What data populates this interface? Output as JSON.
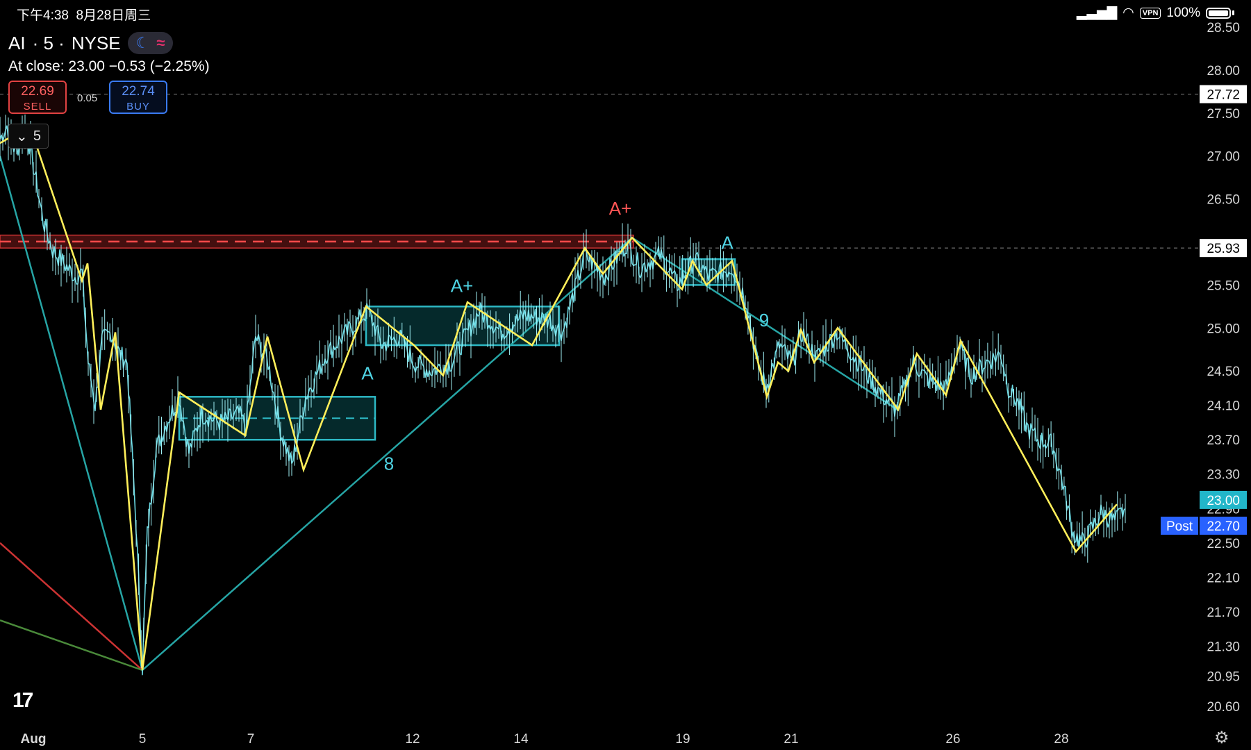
{
  "status_bar": {
    "time": "下午4:38",
    "date": "8月28日周三",
    "vpn": "VPN",
    "battery": "100%"
  },
  "symbol": {
    "ticker": "AI",
    "interval": "· 5 ·",
    "exchange": "NYSE"
  },
  "close_info": {
    "label": "At close:",
    "value": "23.00",
    "change": "−0.53 (−2.25%)"
  },
  "trade": {
    "sell_price": "22.69",
    "sell_label": "SELL",
    "spread": "0.05",
    "buy_price": "22.74",
    "buy_label": "BUY"
  },
  "interval_selector": {
    "value": "5"
  },
  "chart_data": {
    "type": "line",
    "title": "AI · 5 · NYSE",
    "x_ticks": [
      {
        "label": "Aug",
        "bar": 5
      },
      {
        "label": "5",
        "bar": 205
      },
      {
        "label": "7",
        "bar": 361
      },
      {
        "label": "12",
        "bar": 594
      },
      {
        "label": "14",
        "bar": 750
      },
      {
        "label": "19",
        "bar": 983
      },
      {
        "label": "21",
        "bar": 1139
      },
      {
        "label": "26",
        "bar": 1372
      },
      {
        "label": "28",
        "bar": 1528
      }
    ],
    "y_ticks": [
      28.5,
      28.0,
      27.5,
      27.0,
      26.5,
      25.5,
      25.0,
      24.5,
      24.1,
      23.7,
      23.3,
      22.9,
      22.5,
      22.1,
      21.7,
      21.3,
      20.95,
      20.6
    ],
    "y_tick_labels": [
      "28.50",
      "28.00",
      "27.50",
      "27.00",
      "26.50",
      "25.50",
      "25.00",
      "24.50",
      "24.10",
      "23.70",
      "23.30",
      "22.90",
      "22.50",
      "22.10",
      "21.70",
      "21.30",
      "20.95",
      "20.60"
    ],
    "price_path": [
      {
        "bar": 0,
        "price": 27.2
      },
      {
        "bar": 10,
        "price": 27.35
      },
      {
        "bar": 22,
        "price": 27.05
      },
      {
        "bar": 38,
        "price": 27.3
      },
      {
        "bar": 50,
        "price": 26.8
      },
      {
        "bar": 62,
        "price": 26.25
      },
      {
        "bar": 76,
        "price": 25.9
      },
      {
        "bar": 92,
        "price": 25.75
      },
      {
        "bar": 108,
        "price": 25.6
      },
      {
        "bar": 118,
        "price": 25.65
      },
      {
        "bar": 127,
        "price": 24.6
      },
      {
        "bar": 137,
        "price": 24.1
      },
      {
        "bar": 147,
        "price": 24.85
      },
      {
        "bar": 160,
        "price": 24.95
      },
      {
        "bar": 172,
        "price": 24.7
      },
      {
        "bar": 183,
        "price": 24.6
      },
      {
        "bar": 196,
        "price": 22.7
      },
      {
        "bar": 205,
        "price": 21.05
      },
      {
        "bar": 212,
        "price": 22.6
      },
      {
        "bar": 225,
        "price": 23.6
      },
      {
        "bar": 240,
        "price": 23.9
      },
      {
        "bar": 258,
        "price": 24.2
      },
      {
        "bar": 272,
        "price": 23.55
      },
      {
        "bar": 290,
        "price": 24.0
      },
      {
        "bar": 318,
        "price": 23.9
      },
      {
        "bar": 344,
        "price": 24.0
      },
      {
        "bar": 354,
        "price": 23.85
      },
      {
        "bar": 368,
        "price": 24.9
      },
      {
        "bar": 386,
        "price": 24.6
      },
      {
        "bar": 404,
        "price": 23.8
      },
      {
        "bar": 420,
        "price": 23.4
      },
      {
        "bar": 440,
        "price": 24.2
      },
      {
        "bar": 470,
        "price": 24.7
      },
      {
        "bar": 500,
        "price": 24.95
      },
      {
        "bar": 530,
        "price": 25.2
      },
      {
        "bar": 550,
        "price": 24.8
      },
      {
        "bar": 575,
        "price": 24.9
      },
      {
        "bar": 596,
        "price": 24.6
      },
      {
        "bar": 620,
        "price": 24.5
      },
      {
        "bar": 650,
        "price": 24.6
      },
      {
        "bar": 690,
        "price": 25.2
      },
      {
        "bar": 722,
        "price": 24.95
      },
      {
        "bar": 755,
        "price": 25.15
      },
      {
        "bar": 790,
        "price": 25.1
      },
      {
        "bar": 810,
        "price": 24.95
      },
      {
        "bar": 842,
        "price": 25.85
      },
      {
        "bar": 870,
        "price": 25.6
      },
      {
        "bar": 902,
        "price": 25.98
      },
      {
        "bar": 922,
        "price": 25.7
      },
      {
        "bar": 950,
        "price": 25.85
      },
      {
        "bar": 975,
        "price": 25.5
      },
      {
        "bar": 1000,
        "price": 25.8
      },
      {
        "bar": 1020,
        "price": 25.6
      },
      {
        "bar": 1055,
        "price": 25.7
      },
      {
        "bar": 1075,
        "price": 25.3
      },
      {
        "bar": 1090,
        "price": 24.6
      },
      {
        "bar": 1103,
        "price": 24.3
      },
      {
        "bar": 1122,
        "price": 24.8
      },
      {
        "bar": 1140,
        "price": 24.6
      },
      {
        "bar": 1155,
        "price": 24.95
      },
      {
        "bar": 1175,
        "price": 24.65
      },
      {
        "bar": 1205,
        "price": 24.95
      },
      {
        "bar": 1240,
        "price": 24.55
      },
      {
        "bar": 1272,
        "price": 24.2
      },
      {
        "bar": 1290,
        "price": 24.05
      },
      {
        "bar": 1315,
        "price": 24.6
      },
      {
        "bar": 1335,
        "price": 24.4
      },
      {
        "bar": 1362,
        "price": 24.3
      },
      {
        "bar": 1380,
        "price": 24.8
      },
      {
        "bar": 1398,
        "price": 24.45
      },
      {
        "bar": 1420,
        "price": 24.6
      },
      {
        "bar": 1441,
        "price": 24.7
      },
      {
        "bar": 1452,
        "price": 24.3
      },
      {
        "bar": 1467,
        "price": 24.1
      },
      {
        "bar": 1478,
        "price": 23.85
      },
      {
        "bar": 1494,
        "price": 23.7
      },
      {
        "bar": 1515,
        "price": 23.65
      },
      {
        "bar": 1530,
        "price": 23.2
      },
      {
        "bar": 1545,
        "price": 22.6
      },
      {
        "bar": 1560,
        "price": 22.5
      },
      {
        "bar": 1585,
        "price": 22.85
      },
      {
        "bar": 1605,
        "price": 22.75
      },
      {
        "bar": 1620,
        "price": 22.9
      }
    ],
    "zigzag": [
      {
        "bar": 0,
        "price": 27.15
      },
      {
        "bar": 43,
        "price": 27.35
      },
      {
        "bar": 118,
        "price": 25.55
      },
      {
        "bar": 126,
        "price": 25.75
      },
      {
        "bar": 145,
        "price": 24.05
      },
      {
        "bar": 166,
        "price": 24.95
      },
      {
        "bar": 205,
        "price": 21.02
      },
      {
        "bar": 258,
        "price": 24.25
      },
      {
        "bar": 353,
        "price": 23.75
      },
      {
        "bar": 385,
        "price": 24.9
      },
      {
        "bar": 437,
        "price": 23.35
      },
      {
        "bar": 527,
        "price": 25.25
      },
      {
        "bar": 596,
        "price": 24.8
      },
      {
        "bar": 638,
        "price": 24.45
      },
      {
        "bar": 673,
        "price": 25.3
      },
      {
        "bar": 766,
        "price": 24.8
      },
      {
        "bar": 842,
        "price": 25.93
      },
      {
        "bar": 868,
        "price": 25.63
      },
      {
        "bar": 910,
        "price": 26.05
      },
      {
        "bar": 982,
        "price": 25.45
      },
      {
        "bar": 997,
        "price": 25.78
      },
      {
        "bar": 1017,
        "price": 25.5
      },
      {
        "bar": 1054,
        "price": 25.78
      },
      {
        "bar": 1104,
        "price": 24.2
      },
      {
        "bar": 1120,
        "price": 24.6
      },
      {
        "bar": 1135,
        "price": 24.5
      },
      {
        "bar": 1153,
        "price": 24.98
      },
      {
        "bar": 1172,
        "price": 24.6
      },
      {
        "bar": 1206,
        "price": 25.0
      },
      {
        "bar": 1293,
        "price": 24.05
      },
      {
        "bar": 1320,
        "price": 24.7
      },
      {
        "bar": 1362,
        "price": 24.22
      },
      {
        "bar": 1383,
        "price": 24.85
      },
      {
        "bar": 1549,
        "price": 22.4
      },
      {
        "bar": 1608,
        "price": 22.95
      }
    ],
    "trend_lines": [
      {
        "name": "teal-left",
        "color": "#26a5a5",
        "points": [
          {
            "bar": 0,
            "price": 27.0
          },
          {
            "bar": 205,
            "price": 21.02
          }
        ]
      },
      {
        "name": "teal-up",
        "color": "#26a5a5",
        "points": [
          {
            "bar": 205,
            "price": 21.02
          },
          {
            "bar": 910,
            "price": 26.05
          }
        ]
      },
      {
        "name": "teal-down",
        "color": "#26a5a5",
        "points": [
          {
            "bar": 910,
            "price": 26.05
          },
          {
            "bar": 1292,
            "price": 24.05
          }
        ]
      },
      {
        "name": "red-line",
        "color": "#cc3333",
        "points": [
          {
            "bar": 0,
            "price": 22.5
          },
          {
            "bar": 205,
            "price": 21.02
          }
        ]
      },
      {
        "name": "green-line",
        "color": "#4a8a3a",
        "points": [
          {
            "bar": 0,
            "price": 21.6
          },
          {
            "bar": 205,
            "price": 21.02
          }
        ]
      }
    ],
    "zones": [
      {
        "name": "zone-1",
        "bars": [
          258,
          540
        ],
        "prices": [
          23.7,
          24.2
        ],
        "midline": true
      },
      {
        "name": "zone-2",
        "bars": [
          527,
          805
        ],
        "prices": [
          24.8,
          25.25
        ],
        "midline": false
      },
      {
        "name": "zone-3",
        "bars": [
          982,
          1058
        ],
        "prices": [
          25.5,
          25.8
        ],
        "midline": false
      }
    ],
    "resistance_band": {
      "prices": [
        25.93,
        26.08
      ],
      "to_bar": 912
    },
    "annotations": [
      {
        "text": "A+",
        "bar": 893,
        "price": 26.32,
        "color": "#ff5555"
      },
      {
        "text": "A+",
        "bar": 665,
        "price": 25.42,
        "color": "#4fd4e4"
      },
      {
        "text": "A",
        "bar": 1047,
        "price": 25.92,
        "color": "#4fd4e4"
      },
      {
        "text": "A",
        "bar": 529,
        "price": 24.4,
        "color": "#4fd4e4"
      },
      {
        "text": "8",
        "bar": 560,
        "price": 23.35,
        "color": "#4fd4e4"
      },
      {
        "text": "9",
        "bar": 1100,
        "price": 25.02,
        "color": "#4fd4e4"
      }
    ],
    "horizontal_lines": [
      {
        "price": 27.72,
        "label": "27.72",
        "color": "#888888",
        "style": "dashed"
      },
      {
        "price": 25.93,
        "label": "25.93",
        "color": "#888888",
        "style": "dashed"
      }
    ],
    "price_labels": [
      {
        "price": 23.0,
        "label": "23.00",
        "color": "#22b6c9"
      },
      {
        "price": 22.7,
        "label": "22.70",
        "tag": "Post",
        "color": "#2962ff"
      }
    ],
    "xlabel": "",
    "ylabel": "",
    "xlim": [
      0,
      1801
    ],
    "ylim": [
      20.25,
      28.6
    ],
    "colors": {
      "price": "#6fe4ee",
      "zigzag": "#ffef5a",
      "zone": "#2db8c4",
      "zone_fill": "#063033",
      "resistance": "#cc3333"
    }
  }
}
